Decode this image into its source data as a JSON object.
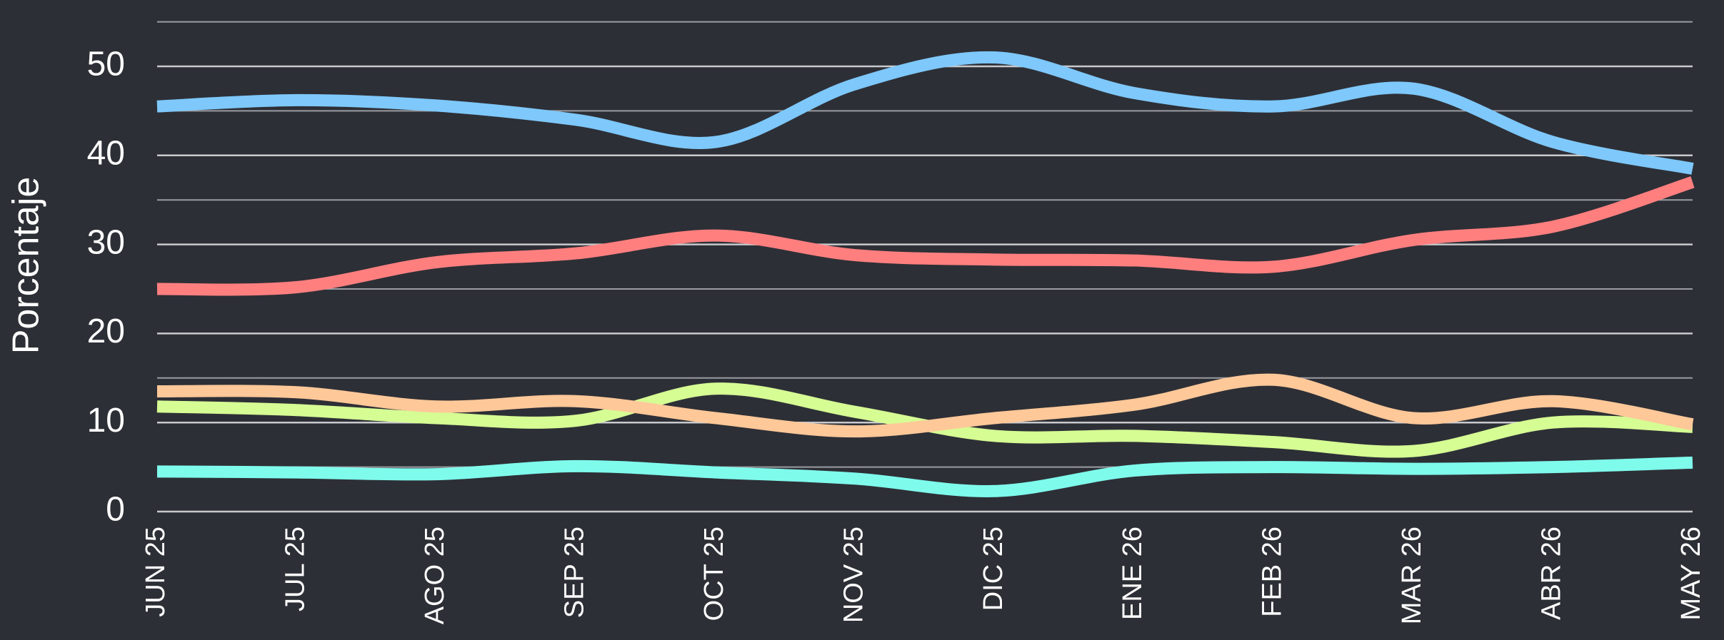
{
  "chart_data": {
    "type": "line",
    "y_label": "Porcentaje",
    "categories": [
      "JUN 25",
      "JUL 25",
      "AGO 25",
      "SEP 25",
      "OCT 25",
      "NOV 25",
      "DIC 25",
      "ENE 26",
      "FEB 26",
      "MAR 26",
      "ABR 26",
      "MAY 26"
    ],
    "ylim": [
      0,
      55
    ],
    "yticks": [
      0,
      10,
      20,
      30,
      40,
      50
    ],
    "minor_yticks": [
      5,
      15,
      25,
      35,
      45,
      55
    ],
    "grid": true,
    "smooth": true,
    "background": "#2d2f36",
    "series": [
      {
        "color": "#7ec8fb",
        "values": [
          45.5,
          46.2,
          45.6,
          44,
          41.5,
          48,
          51,
          47,
          45.5,
          47.5,
          41.5,
          38.5
        ]
      },
      {
        "color": "#ff7f7f",
        "values": [
          25,
          25.2,
          28,
          29,
          31,
          28.8,
          28.3,
          28.2,
          27.5,
          30.5,
          32,
          37
        ]
      },
      {
        "color": "#d6fc94",
        "values": [
          11.8,
          11.4,
          10.5,
          10.2,
          13.8,
          11.2,
          8.5,
          8.5,
          7.8,
          6.8,
          10,
          9.5
        ]
      },
      {
        "color": "#ffc899",
        "values": [
          13.5,
          13.4,
          11.8,
          12.4,
          10.5,
          9,
          10.5,
          12,
          14.8,
          10.5,
          12.4,
          9.8
        ]
      },
      {
        "color": "#7ffbec",
        "values": [
          4.5,
          4.4,
          4.2,
          5.1,
          4.4,
          3.7,
          2.3,
          4.6,
          5,
          4.8,
          5,
          5.5
        ]
      }
    ]
  }
}
